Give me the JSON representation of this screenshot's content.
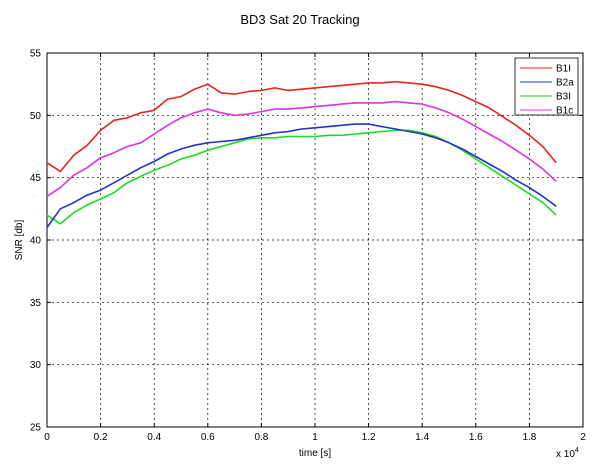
{
  "chart_data": {
    "type": "line",
    "title": "BD3 Sat 20 Tracking",
    "xlabel": "time [s]",
    "ylabel": "SNR [db]",
    "x_exponent_label": "x 10",
    "x_exponent_power": "4",
    "xlim": [
      0,
      20000
    ],
    "ylim": [
      25,
      55
    ],
    "x_ticks": [
      0,
      2000,
      4000,
      6000,
      8000,
      10000,
      12000,
      14000,
      16000,
      18000,
      20000
    ],
    "x_tick_labels": [
      "0",
      "0.2",
      "0.4",
      "0.6",
      "0.8",
      "1",
      "1.2",
      "1.4",
      "1.6",
      "1.8",
      "2"
    ],
    "y_ticks": [
      25,
      30,
      35,
      40,
      45,
      50,
      55
    ],
    "y_tick_labels": [
      "25",
      "30",
      "35",
      "40",
      "45",
      "50",
      "55"
    ],
    "grid": true,
    "legend_position": "top-right",
    "series": [
      {
        "name": "B1I",
        "color": "#e8251a",
        "x": [
          0,
          500,
          1000,
          1500,
          2000,
          2500,
          3000,
          3500,
          4000,
          4500,
          5000,
          5500,
          6000,
          6500,
          7000,
          7500,
          8000,
          8500,
          9000,
          9500,
          10000,
          10500,
          11000,
          11500,
          12000,
          12500,
          13000,
          13500,
          14000,
          14500,
          15000,
          15500,
          16000,
          16500,
          17000,
          17500,
          18000,
          18500,
          19000
        ],
        "values": [
          46.2,
          45.5,
          46.8,
          47.6,
          48.8,
          49.6,
          49.8,
          50.2,
          50.4,
          51.3,
          51.5,
          52.1,
          52.5,
          51.8,
          51.7,
          51.9,
          52.0,
          52.2,
          52.0,
          52.1,
          52.2,
          52.3,
          52.4,
          52.5,
          52.6,
          52.6,
          52.7,
          52.6,
          52.5,
          52.3,
          52.0,
          51.6,
          51.1,
          50.6,
          49.9,
          49.2,
          48.4,
          47.5,
          46.2
        ]
      },
      {
        "name": "B2a",
        "color": "#2233c8",
        "x": [
          0,
          500,
          1000,
          1500,
          2000,
          2500,
          3000,
          3500,
          4000,
          4500,
          5000,
          5500,
          6000,
          6500,
          7000,
          7500,
          8000,
          8500,
          9000,
          9500,
          10000,
          10500,
          11000,
          11500,
          12000,
          12500,
          13000,
          13500,
          14000,
          14500,
          15000,
          15500,
          16000,
          16500,
          17000,
          17500,
          18000,
          18500,
          19000
        ],
        "values": [
          41.0,
          42.5,
          43.0,
          43.6,
          44.0,
          44.6,
          45.2,
          45.8,
          46.3,
          46.9,
          47.3,
          47.6,
          47.8,
          47.9,
          48.0,
          48.2,
          48.4,
          48.6,
          48.7,
          48.9,
          49.0,
          49.1,
          49.2,
          49.3,
          49.3,
          49.1,
          48.9,
          48.7,
          48.5,
          48.2,
          47.8,
          47.3,
          46.7,
          46.1,
          45.5,
          44.8,
          44.2,
          43.5,
          42.7
        ]
      },
      {
        "name": "B3I",
        "color": "#1fdb1f",
        "x": [
          0,
          500,
          1000,
          1500,
          2000,
          2500,
          3000,
          3500,
          4000,
          4500,
          5000,
          5500,
          6000,
          6500,
          7000,
          7500,
          8000,
          8500,
          9000,
          9500,
          10000,
          10500,
          11000,
          11500,
          12000,
          12500,
          13000,
          13500,
          14000,
          14500,
          15000,
          15500,
          16000,
          16500,
          17000,
          17500,
          18000,
          18500,
          19000
        ],
        "values": [
          42.0,
          41.3,
          42.2,
          42.8,
          43.3,
          43.8,
          44.6,
          45.1,
          45.6,
          46.0,
          46.5,
          46.8,
          47.2,
          47.5,
          47.8,
          48.1,
          48.2,
          48.2,
          48.3,
          48.3,
          48.3,
          48.4,
          48.4,
          48.5,
          48.6,
          48.7,
          48.8,
          48.8,
          48.6,
          48.3,
          47.8,
          47.2,
          46.5,
          45.8,
          45.1,
          44.4,
          43.7,
          43.0,
          42.0
        ]
      },
      {
        "name": "B1c",
        "color": "#e030e0",
        "x": [
          0,
          500,
          1000,
          1500,
          2000,
          2500,
          3000,
          3500,
          4000,
          4500,
          5000,
          5500,
          6000,
          6500,
          7000,
          7500,
          8000,
          8500,
          9000,
          9500,
          10000,
          10500,
          11000,
          11500,
          12000,
          12500,
          13000,
          13500,
          14000,
          14500,
          15000,
          15500,
          16000,
          16500,
          17000,
          17500,
          18000,
          18500,
          19000
        ],
        "values": [
          43.5,
          44.2,
          45.2,
          45.8,
          46.6,
          47.0,
          47.5,
          47.8,
          48.5,
          49.2,
          49.8,
          50.2,
          50.5,
          50.2,
          50.0,
          50.1,
          50.3,
          50.5,
          50.5,
          50.6,
          50.7,
          50.8,
          50.9,
          51.0,
          51.0,
          51.0,
          51.1,
          51.0,
          50.9,
          50.6,
          50.2,
          49.7,
          49.1,
          48.5,
          47.9,
          47.2,
          46.5,
          45.7,
          44.7
        ]
      }
    ]
  }
}
